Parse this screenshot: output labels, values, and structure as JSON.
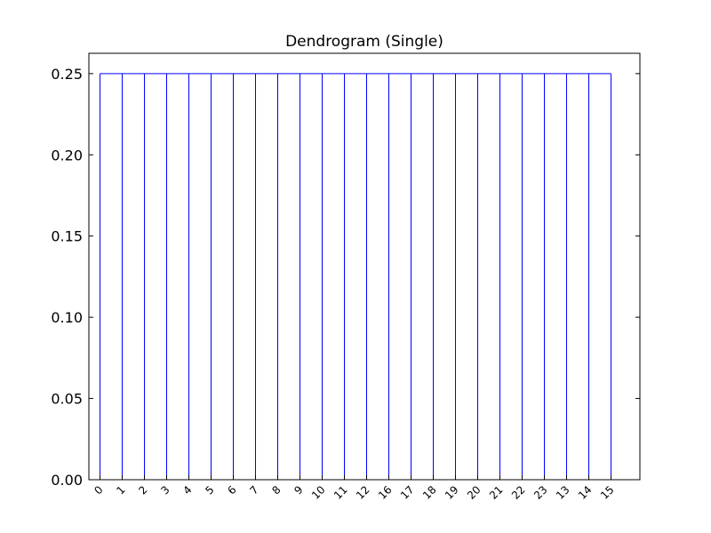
{
  "chart_data": {
    "type": "dendrogram",
    "title": "Dendrogram (Single)",
    "xlabel": "",
    "ylabel": "",
    "leaves": [
      "0",
      "1",
      "2",
      "3",
      "4",
      "5",
      "6",
      "7",
      "8",
      "9",
      "10",
      "11",
      "12",
      "16",
      "17",
      "18",
      "19",
      "20",
      "21",
      "22",
      "23",
      "13",
      "14",
      "15"
    ],
    "merge_height": 0.25,
    "ylim": [
      0,
      0.2625
    ],
    "yticks": [
      0.0,
      0.05,
      0.1,
      0.15,
      0.2,
      0.25
    ],
    "ytick_labels": [
      "0.00",
      "0.05",
      "0.10",
      "0.15",
      "0.20",
      "0.25"
    ],
    "line_color": "#0000ff",
    "grid": false,
    "legend": "none"
  }
}
